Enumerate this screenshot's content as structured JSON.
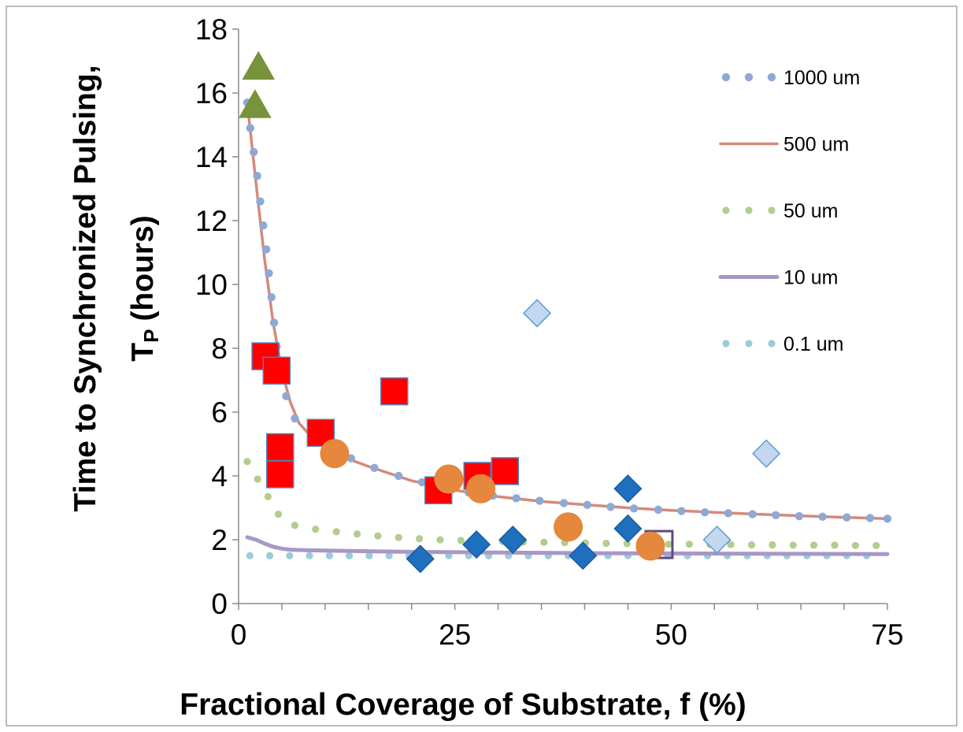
{
  "chart_data": {
    "type": "scatter",
    "xlabel": "Fractional Coverage of Substrate, f (%)",
    "ylabel": {
      "main": "Time to Synchronized Pulsing,",
      "symbol": "T",
      "subscript": "P",
      "unit": "(hours)"
    },
    "xlim": [
      0,
      75
    ],
    "ylim": [
      0,
      18
    ],
    "x_ticks": [
      0,
      25,
      50,
      75
    ],
    "y_ticks": [
      0,
      2,
      4,
      6,
      8,
      10,
      12,
      14,
      16,
      18
    ],
    "grid": false,
    "legend_position": "top-right",
    "curves": [
      {
        "name": "1000 um",
        "style": "dotted-large",
        "color": "#8ea9d5",
        "points": [
          [
            1,
            15.7
          ],
          [
            1.35,
            14.9
          ],
          [
            1.75,
            14.15
          ],
          [
            2.15,
            13.4
          ],
          [
            2.5,
            12.6
          ],
          [
            2.85,
            11.85
          ],
          [
            3.2,
            11.1
          ],
          [
            3.5,
            10.35
          ],
          [
            3.8,
            9.6
          ],
          [
            4.1,
            8.8
          ],
          [
            4.4,
            8.05
          ],
          [
            5.1,
            7.3
          ],
          [
            5.5,
            6.5
          ],
          [
            6.5,
            5.8
          ],
          [
            8.5,
            5.25
          ],
          [
            10.7,
            4.85
          ],
          [
            13,
            4.55
          ],
          [
            15.7,
            4.25
          ],
          [
            18.5,
            4.0
          ],
          [
            21.2,
            3.8
          ],
          [
            23.9,
            3.6
          ],
          [
            26.6,
            3.48
          ],
          [
            29.4,
            3.38
          ],
          [
            32.1,
            3.3
          ],
          [
            34.8,
            3.22
          ],
          [
            37.6,
            3.15
          ],
          [
            40.3,
            3.09
          ],
          [
            43,
            3.03
          ],
          [
            45.7,
            2.98
          ],
          [
            48.5,
            2.94
          ],
          [
            51.2,
            2.9
          ],
          [
            53.9,
            2.86
          ],
          [
            56.6,
            2.83
          ],
          [
            59.4,
            2.8
          ],
          [
            62.1,
            2.77
          ],
          [
            64.8,
            2.74
          ],
          [
            67.5,
            2.72
          ],
          [
            70.3,
            2.7
          ],
          [
            73,
            2.68
          ],
          [
            75,
            2.66
          ]
        ]
      },
      {
        "name": "500 um",
        "style": "solid",
        "color": "#d4897b",
        "points": [
          [
            1,
            15.7
          ],
          [
            2,
            13.2
          ],
          [
            3,
            10.8
          ],
          [
            4,
            8.8
          ],
          [
            5,
            7.3
          ],
          [
            6,
            6.3
          ],
          [
            7,
            5.65
          ],
          [
            8.5,
            5.2
          ],
          [
            10,
            4.9
          ],
          [
            12.5,
            4.55
          ],
          [
            15,
            4.3
          ],
          [
            20,
            3.85
          ],
          [
            25,
            3.55
          ],
          [
            30,
            3.35
          ],
          [
            35,
            3.2
          ],
          [
            40,
            3.1
          ],
          [
            45,
            3.0
          ],
          [
            50,
            2.92
          ],
          [
            55,
            2.86
          ],
          [
            60,
            2.8
          ],
          [
            65,
            2.75
          ],
          [
            70,
            2.7
          ],
          [
            75,
            2.66
          ]
        ]
      },
      {
        "name": "50 um",
        "style": "dotted",
        "color": "#b4cc8e",
        "points": [
          [
            1,
            4.45
          ],
          [
            2.2,
            3.9
          ],
          [
            3.4,
            3.35
          ],
          [
            4.6,
            2.8
          ],
          [
            6.5,
            2.45
          ],
          [
            8.9,
            2.33
          ],
          [
            11.3,
            2.25
          ],
          [
            13.7,
            2.18
          ],
          [
            16.1,
            2.12
          ],
          [
            18.5,
            2.07
          ],
          [
            20.9,
            2.03
          ],
          [
            23.3,
            2.0
          ],
          [
            25.7,
            1.98
          ],
          [
            28.1,
            1.96
          ],
          [
            30.5,
            1.95
          ],
          [
            32.9,
            1.93
          ],
          [
            35.3,
            1.92
          ],
          [
            37.7,
            1.91
          ],
          [
            40.1,
            1.9
          ],
          [
            42.5,
            1.89
          ],
          [
            44.9,
            1.88
          ],
          [
            47.3,
            1.87
          ],
          [
            49.7,
            1.86
          ],
          [
            52.1,
            1.86
          ],
          [
            54.5,
            1.85
          ],
          [
            56.9,
            1.85
          ],
          [
            59.3,
            1.84
          ],
          [
            61.7,
            1.84
          ],
          [
            64.1,
            1.83
          ],
          [
            66.5,
            1.83
          ],
          [
            68.9,
            1.83
          ],
          [
            71.3,
            1.82
          ],
          [
            73.7,
            1.82
          ]
        ]
      },
      {
        "name": "10 um",
        "style": "solid-thick",
        "color": "#a898c4",
        "points": [
          [
            1,
            2.08
          ],
          [
            2,
            2.0
          ],
          [
            3,
            1.88
          ],
          [
            4,
            1.78
          ],
          [
            5,
            1.72
          ],
          [
            6,
            1.69
          ],
          [
            8,
            1.67
          ],
          [
            10,
            1.66
          ],
          [
            15,
            1.64
          ],
          [
            20,
            1.62
          ],
          [
            30,
            1.6
          ],
          [
            40,
            1.58
          ],
          [
            50,
            1.57
          ],
          [
            60,
            1.56
          ],
          [
            75,
            1.55
          ]
        ]
      },
      {
        "name": "0.1 um",
        "style": "dotted",
        "color": "#9ccbdb",
        "points": [
          [
            1.3,
            1.5
          ],
          [
            3.6,
            1.5
          ],
          [
            5.9,
            1.5
          ],
          [
            8.2,
            1.5
          ],
          [
            10.5,
            1.5
          ],
          [
            12.8,
            1.5
          ],
          [
            15.1,
            1.5
          ],
          [
            17.4,
            1.5
          ],
          [
            19.7,
            1.5
          ],
          [
            22,
            1.5
          ],
          [
            24.3,
            1.5
          ],
          [
            26.6,
            1.5
          ],
          [
            28.9,
            1.5
          ],
          [
            31.2,
            1.5
          ],
          [
            33.5,
            1.5
          ],
          [
            35.8,
            1.5
          ],
          [
            38.1,
            1.5
          ],
          [
            40.4,
            1.5
          ],
          [
            42.7,
            1.5
          ],
          [
            45,
            1.5
          ],
          [
            47.3,
            1.5
          ],
          [
            49.6,
            1.5
          ],
          [
            51.9,
            1.5
          ],
          [
            54.2,
            1.5
          ],
          [
            56.5,
            1.5
          ],
          [
            58.8,
            1.5
          ],
          [
            61.1,
            1.5
          ],
          [
            63.4,
            1.5
          ],
          [
            65.7,
            1.5
          ],
          [
            68,
            1.5
          ],
          [
            70.3,
            1.5
          ],
          [
            72.6,
            1.5
          ]
        ]
      }
    ],
    "markers": [
      {
        "shape": "triangle",
        "fill": "#77933c",
        "stroke": "#77933c",
        "points": [
          [
            2.3,
            16.8
          ],
          [
            1.9,
            15.6
          ]
        ]
      },
      {
        "shape": "square",
        "fill": "#ff0000",
        "stroke": "#4f81bd",
        "points": [
          [
            3.1,
            7.75
          ],
          [
            4.4,
            7.3
          ],
          [
            4.8,
            4.9
          ],
          [
            4.8,
            4.05
          ],
          [
            9.5,
            5.35
          ],
          [
            18,
            6.65
          ],
          [
            23.1,
            3.55
          ],
          [
            27.6,
            4.0
          ],
          [
            30.8,
            4.15
          ]
        ]
      },
      {
        "shape": "circle",
        "fill": "#e5873c",
        "stroke": "#e5873c",
        "points": [
          [
            11.1,
            4.7
          ],
          [
            24.3,
            3.9
          ],
          [
            28,
            3.6
          ],
          [
            38.1,
            2.4
          ],
          [
            47.6,
            1.8
          ]
        ]
      },
      {
        "shape": "diamond",
        "fill": "#1f6fbf",
        "stroke": "#1a5c9e",
        "points": [
          [
            21,
            1.4
          ],
          [
            27.5,
            1.85
          ],
          [
            31.7,
            2.0
          ],
          [
            39.8,
            1.5
          ],
          [
            45,
            3.6
          ],
          [
            45,
            2.35
          ]
        ]
      },
      {
        "shape": "diamond-light",
        "fill": "#c5d6ef",
        "stroke": "#5b9bd5",
        "points": [
          [
            34.5,
            9.1
          ],
          [
            61,
            4.7
          ],
          [
            55.3,
            2.0
          ]
        ]
      },
      {
        "shape": "open-square",
        "fill": "none",
        "stroke": "#604a7b",
        "points": [
          [
            48.6,
            1.85
          ]
        ]
      }
    ]
  }
}
